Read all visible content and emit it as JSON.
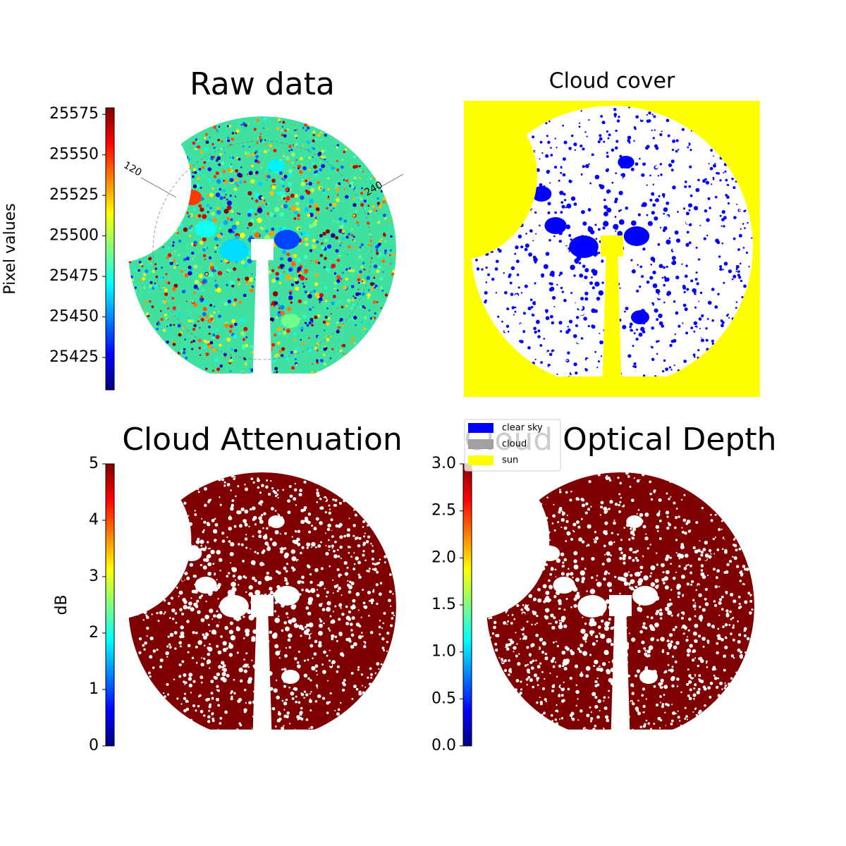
{
  "chart_data": [
    {
      "type": "image",
      "title": "Raw data",
      "colormap": "jet",
      "colorbar": {
        "label": "Pixel values",
        "lim": [
          25405,
          25579
        ],
        "ticks": [
          25425,
          25450,
          25475,
          25500,
          25525,
          25550,
          25575
        ]
      },
      "annotations": [
        "120",
        "240"
      ]
    },
    {
      "type": "mask",
      "title": "Cloud cover",
      "legend": {
        "series": [
          {
            "name": "clear sky",
            "color": "#0000ff"
          },
          {
            "name": "cloud",
            "color": "#a0a0a0"
          },
          {
            "name": "sun",
            "color": "#ffff00"
          }
        ]
      }
    },
    {
      "type": "image",
      "title": "Cloud Attenuation",
      "colormap": "jet",
      "colorbar": {
        "label": "dB",
        "lim": [
          0,
          5
        ],
        "ticks": [
          0,
          1,
          2,
          3,
          4,
          5
        ]
      }
    },
    {
      "type": "image",
      "title": "Cloud Optical Depth",
      "colormap": "jet",
      "colorbar": {
        "lim": [
          0,
          3
        ],
        "ticks": [
          {
            "value": 0,
            "label": "0.0"
          },
          {
            "value": 0.5,
            "label": "0.5"
          },
          {
            "value": 1,
            "label": "1.0"
          },
          {
            "value": 1.5,
            "label": "1.5"
          },
          {
            "value": 2,
            "label": "2.0"
          },
          {
            "value": 2.5,
            "label": "2.5"
          },
          {
            "value": 3,
            "label": "3.0"
          }
        ]
      }
    }
  ]
}
